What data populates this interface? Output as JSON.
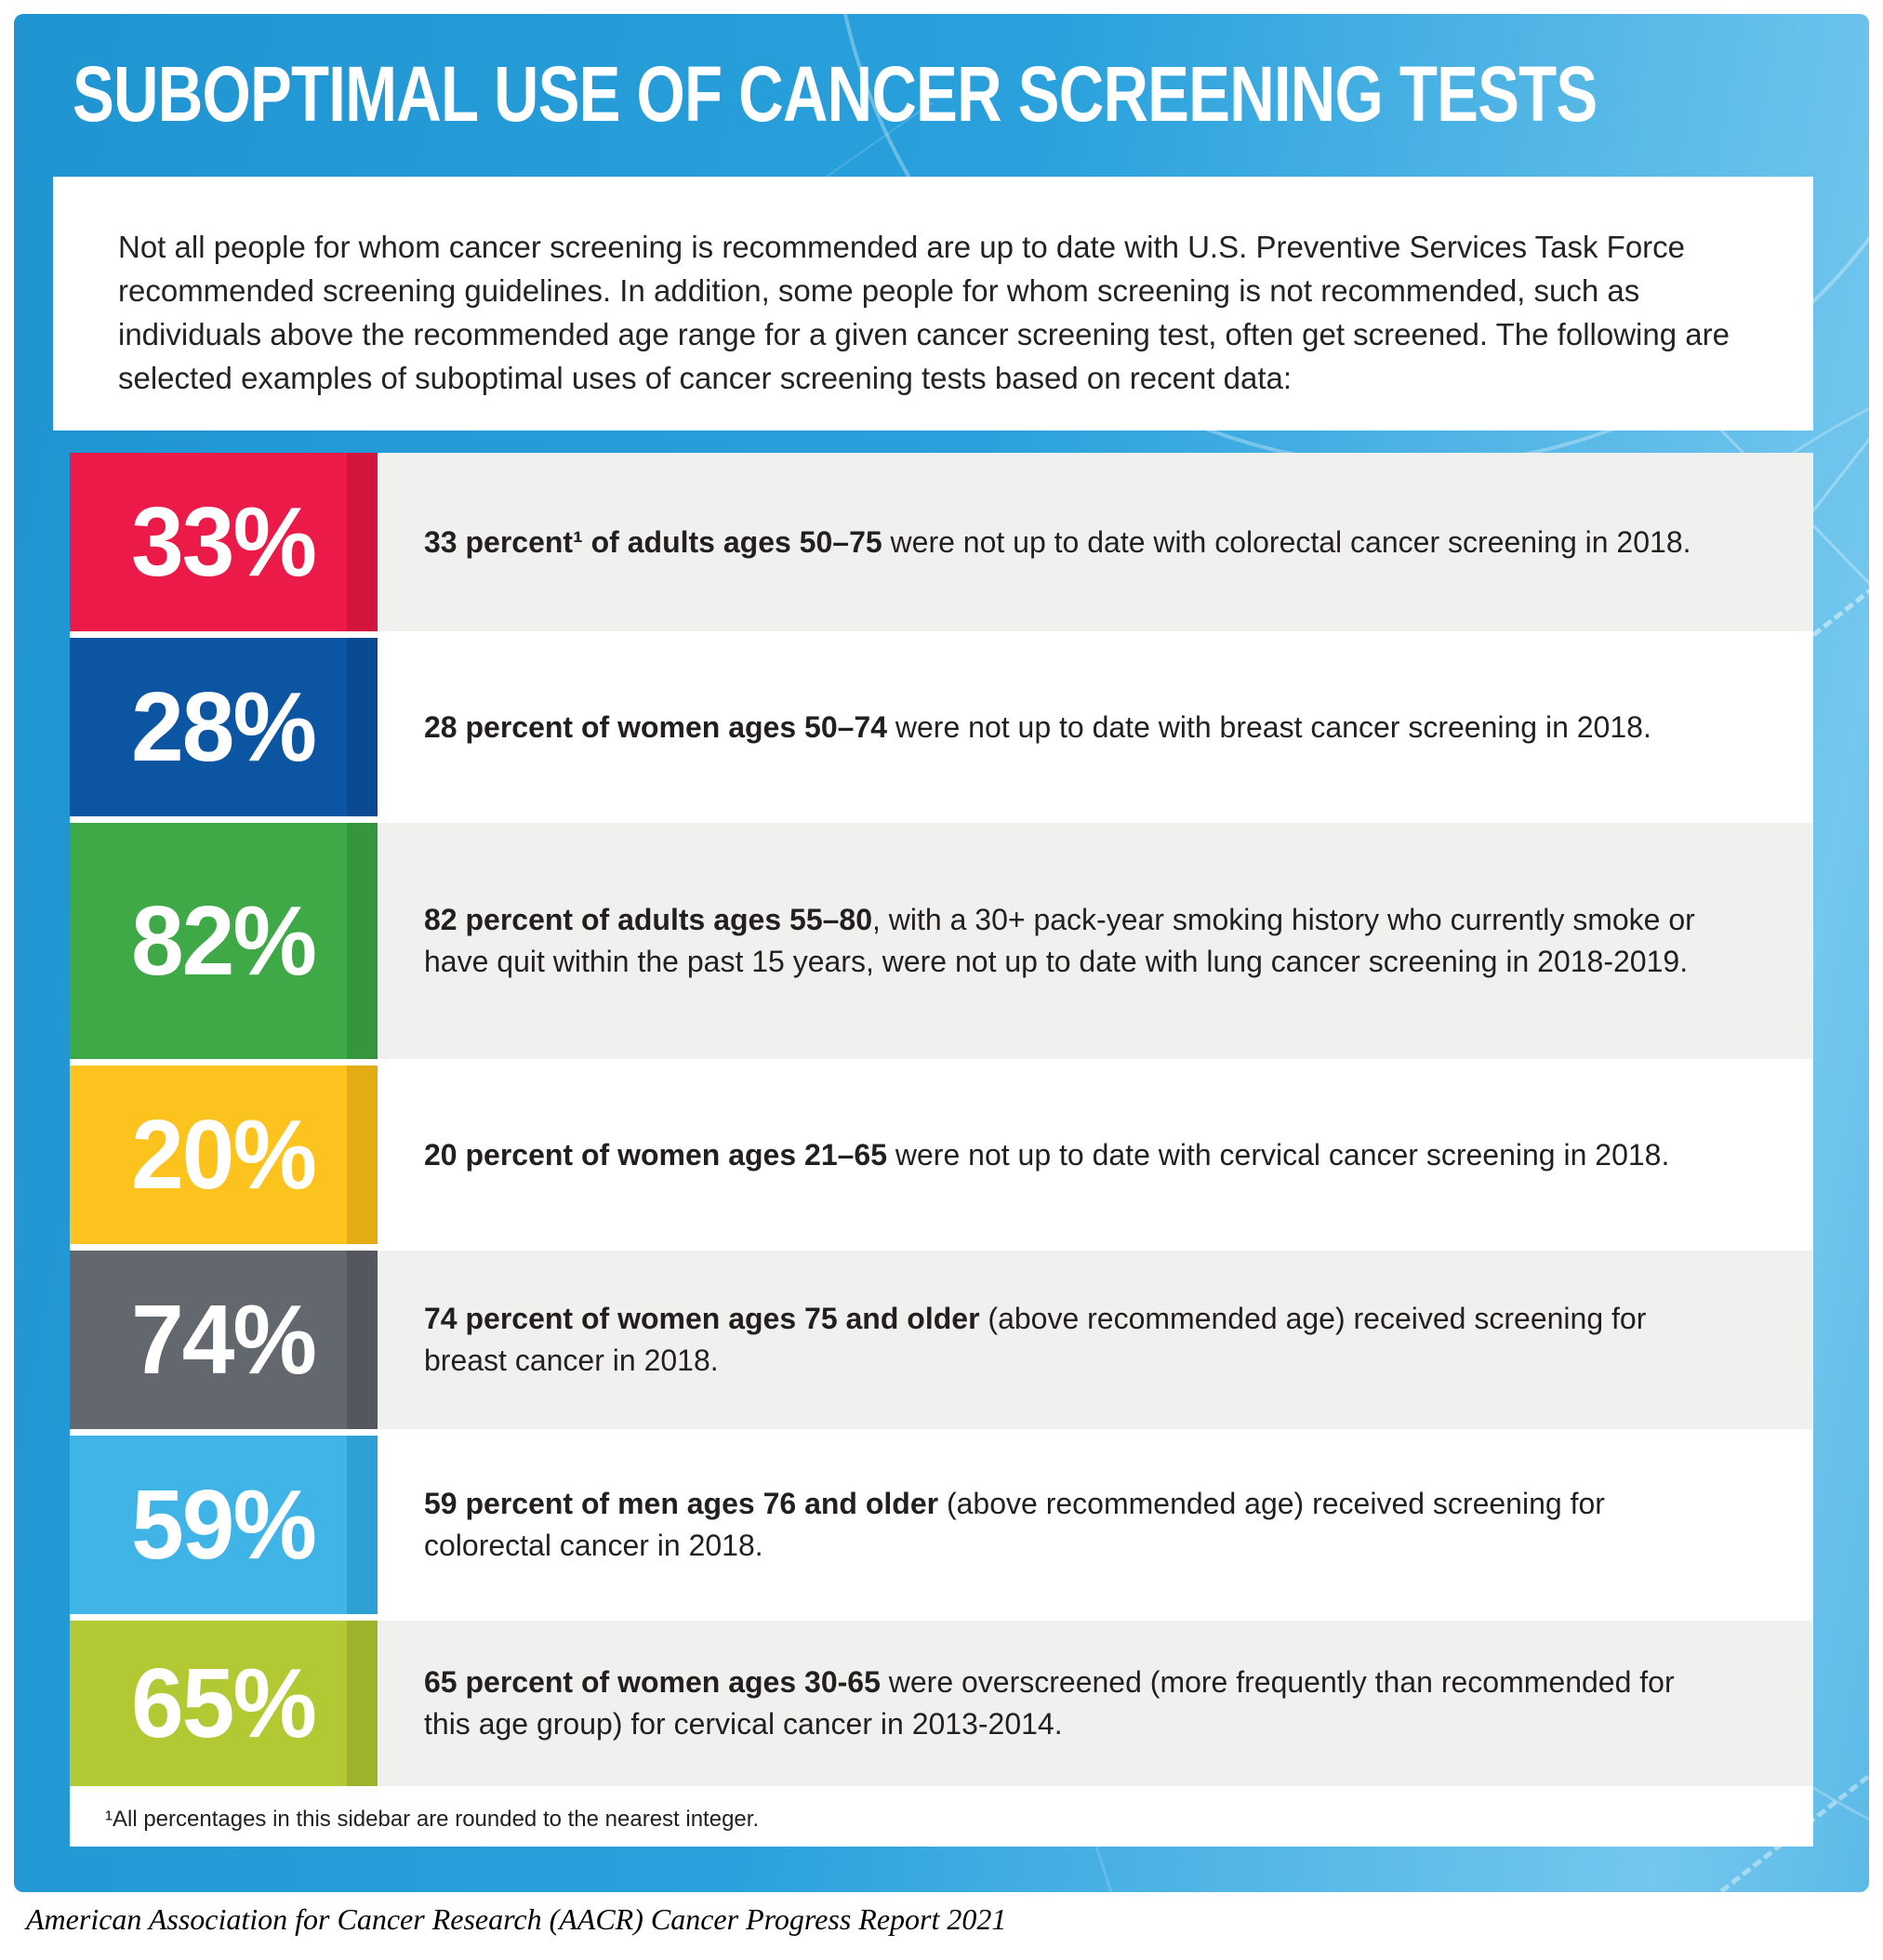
{
  "page": {
    "title": "SUBOPTIMAL USE OF CANCER SCREENING TESTS",
    "intro": "Not all people for whom cancer screening is recommended are up to date with U.S. Preventive Services Task Force recommended screening guidelines. In addition, some people for whom screening is not recommended, such as individuals above the recommended age range for a given cancer screening test, often get screened. The following are selected examples of suboptimal uses of cancer screening tests based on recent data:",
    "footnote": "¹All percentages in this sidebar are rounded to the nearest integer.",
    "citation": "American Association for Cancer Research (AACR) Cancer Progress Report 2021",
    "card_colors": [
      "#1F94D1",
      "#2AA1DC",
      "#74C7EE"
    ]
  },
  "rows": [
    {
      "pct": "33%",
      "value": 33,
      "color": "#EC1A49",
      "color_dark": "#D3153E",
      "bg": "#F0F0EF",
      "bold": "33 percent¹ of adults ages 50–75",
      "rest": " were not up to date with colorectal cancer screening in 2018."
    },
    {
      "pct": "28%",
      "value": 28,
      "color": "#0C55A3",
      "color_dark": "#0A4A90",
      "bg": "#FFFFFF",
      "bold": "28 percent of women ages 50–74",
      "rest": " were not up to date with breast cancer screening in 2018."
    },
    {
      "pct": "82%",
      "value": 82,
      "color": "#3FA948",
      "color_dark": "#36953F",
      "bg": "#F0F0EF",
      "bold": "82 percent of adults ages 55–80",
      "rest": ", with a 30+ pack-year smoking history who currently smoke or have quit within the past 15 years, were not up to date with lung cancer screening in 2018-2019."
    },
    {
      "pct": "20%",
      "value": 20,
      "color": "#FCC31E",
      "color_dark": "#E3AC15",
      "bg": "#FFFFFF",
      "bold": "20 percent of women ages 21–65",
      "rest": " were not up to date with cervical cancer screening in 2018."
    },
    {
      "pct": "74%",
      "value": 74,
      "color": "#63676E",
      "color_dark": "#54575D",
      "bg": "#F0F0EF",
      "bold": "74 percent of women ages 75 and older",
      "rest": " (above recommended age) received screening for breast cancer in 2018."
    },
    {
      "pct": "59%",
      "value": 59,
      "color": "#41B4E7",
      "color_dark": "#2FA0D3",
      "bg": "#FFFFFF",
      "bold": "59 percent of men ages 76 and older",
      "rest": " (above recommended age) received screening for colorectal cancer in 2018."
    },
    {
      "pct": "65%",
      "value": 65,
      "color": "#B2C933",
      "color_dark": "#9DB32B",
      "bg": "#F0F0EF",
      "bold": "65 percent of women ages 30-65",
      "rest": " were overscreened (more frequently than recommended for this age group) for cervical cancer in 2013-2014."
    }
  ]
}
